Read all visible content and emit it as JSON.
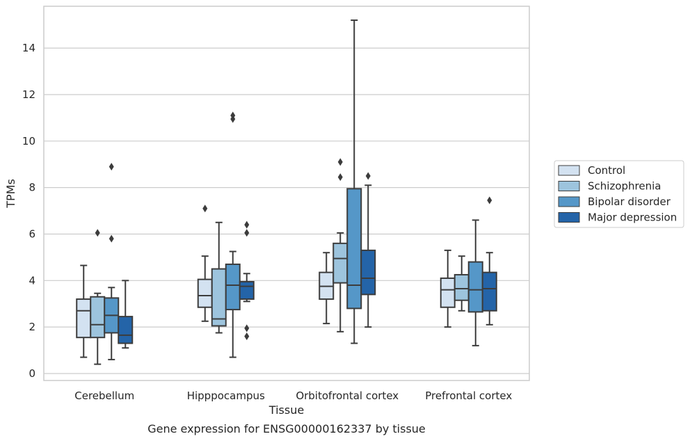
{
  "caption": "Gene expression for ENSG00000162337 by tissue",
  "chart_data": {
    "type": "box",
    "xlabel": "Tissue",
    "ylabel": "TPMs",
    "ylim": [
      -0.3,
      15.8
    ],
    "yticks": [
      0,
      2,
      4,
      6,
      8,
      10,
      12,
      14
    ],
    "grid": true,
    "legend_position": "right",
    "categories": [
      "Cerebellum",
      "Hipppocampus",
      "Orbitofrontal cortex",
      "Prefrontal cortex"
    ],
    "series": [
      {
        "name": "Control",
        "color": "#d3e2f1",
        "boxes": [
          {
            "whislo": 0.7,
            "q1": 1.55,
            "med": 2.7,
            "q3": 3.2,
            "whishi": 4.65,
            "fliers": []
          },
          {
            "whislo": 2.25,
            "q1": 2.85,
            "med": 3.35,
            "q3": 4.05,
            "whishi": 5.05,
            "fliers": [
              7.1
            ]
          },
          {
            "whislo": 2.15,
            "q1": 3.2,
            "med": 3.75,
            "q3": 4.35,
            "whishi": 5.2,
            "fliers": []
          },
          {
            "whislo": 2.0,
            "q1": 2.85,
            "med": 3.6,
            "q3": 4.1,
            "whishi": 5.3,
            "fliers": []
          }
        ]
      },
      {
        "name": "Schizophrenia",
        "color": "#9dc4dd",
        "boxes": [
          {
            "whislo": 0.4,
            "q1": 1.55,
            "med": 2.1,
            "q3": 3.3,
            "whishi": 3.45,
            "fliers": [
              6.05
            ]
          },
          {
            "whislo": 1.75,
            "q1": 2.05,
            "med": 2.35,
            "q3": 4.5,
            "whishi": 6.5,
            "fliers": []
          },
          {
            "whislo": 1.8,
            "q1": 3.9,
            "med": 4.95,
            "q3": 5.6,
            "whishi": 6.05,
            "fliers": [
              8.45,
              9.1
            ]
          },
          {
            "whislo": 2.7,
            "q1": 3.15,
            "med": 3.65,
            "q3": 4.25,
            "whishi": 5.05,
            "fliers": []
          }
        ]
      },
      {
        "name": "Bipolar disorder",
        "color": "#5597c8",
        "boxes": [
          {
            "whislo": 0.6,
            "q1": 1.75,
            "med": 2.5,
            "q3": 3.25,
            "whishi": 3.7,
            "fliers": [
              5.8,
              8.9
            ]
          },
          {
            "whislo": 0.7,
            "q1": 2.75,
            "med": 3.8,
            "q3": 4.7,
            "whishi": 5.25,
            "fliers": [
              10.95,
              11.1
            ]
          },
          {
            "whislo": 1.3,
            "q1": 2.8,
            "med": 3.8,
            "q3": 7.95,
            "whishi": 15.2,
            "fliers": []
          },
          {
            "whislo": 1.2,
            "q1": 2.65,
            "med": 3.6,
            "q3": 4.8,
            "whishi": 6.6,
            "fliers": []
          }
        ]
      },
      {
        "name": "Major depression",
        "color": "#2464a8",
        "boxes": [
          {
            "whislo": 1.1,
            "q1": 1.3,
            "med": 1.65,
            "q3": 2.45,
            "whishi": 4.0,
            "fliers": []
          },
          {
            "whislo": 3.1,
            "q1": 3.2,
            "med": 3.75,
            "q3": 3.95,
            "whishi": 4.3,
            "fliers": [
              1.6,
              1.95,
              6.05,
              6.4
            ]
          },
          {
            "whislo": 2.0,
            "q1": 3.4,
            "med": 4.1,
            "q3": 5.3,
            "whishi": 8.1,
            "fliers": [
              8.5
            ]
          },
          {
            "whislo": 2.1,
            "q1": 2.7,
            "med": 3.65,
            "q3": 4.35,
            "whishi": 5.2,
            "fliers": [
              7.45
            ]
          }
        ]
      }
    ]
  }
}
